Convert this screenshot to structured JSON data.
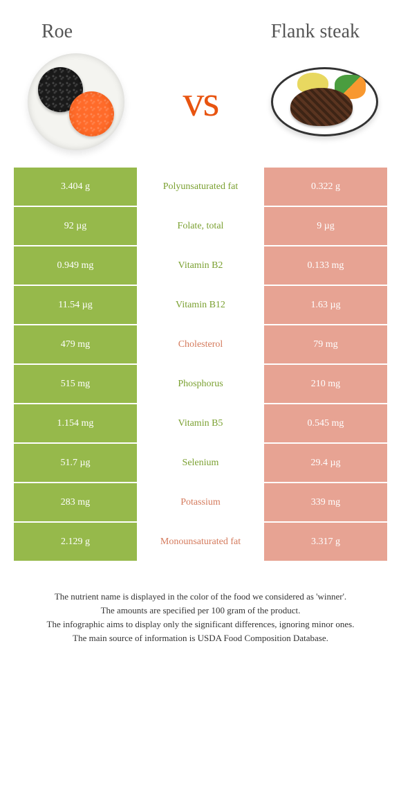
{
  "header": {
    "left_title": "Roe",
    "right_title": "Flank steak",
    "vs_label": "vs"
  },
  "colors": {
    "left_highlight": "#96b94b",
    "right_highlight": "#e7a393",
    "left_text": "#7aa030",
    "right_text": "#d47a5c"
  },
  "rows": [
    {
      "label": "Polyunsaturated fat",
      "left": "3.404 g",
      "right": "0.322 g",
      "winner": "left"
    },
    {
      "label": "Folate, total",
      "left": "92 µg",
      "right": "9 µg",
      "winner": "left"
    },
    {
      "label": "Vitamin B2",
      "left": "0.949 mg",
      "right": "0.133 mg",
      "winner": "left"
    },
    {
      "label": "Vitamin B12",
      "left": "11.54 µg",
      "right": "1.63 µg",
      "winner": "left"
    },
    {
      "label": "Cholesterol",
      "left": "479 mg",
      "right": "79 mg",
      "winner": "right"
    },
    {
      "label": "Phosphorus",
      "left": "515 mg",
      "right": "210 mg",
      "winner": "left"
    },
    {
      "label": "Vitamin B5",
      "left": "1.154 mg",
      "right": "0.545 mg",
      "winner": "left"
    },
    {
      "label": "Selenium",
      "left": "51.7 µg",
      "right": "29.4 µg",
      "winner": "left"
    },
    {
      "label": "Potassium",
      "left": "283 mg",
      "right": "339 mg",
      "winner": "right"
    },
    {
      "label": "Monounsaturated fat",
      "left": "2.129 g",
      "right": "3.317 g",
      "winner": "right"
    }
  ],
  "footer": {
    "line1": "The nutrient name is displayed in the color of the food we considered as 'winner'.",
    "line2": "The amounts are specified per 100 gram of the product.",
    "line3": "The infographic aims to display only the significant differences, ignoring minor ones.",
    "line4": "The main source of information is USDA Food Composition Database."
  }
}
